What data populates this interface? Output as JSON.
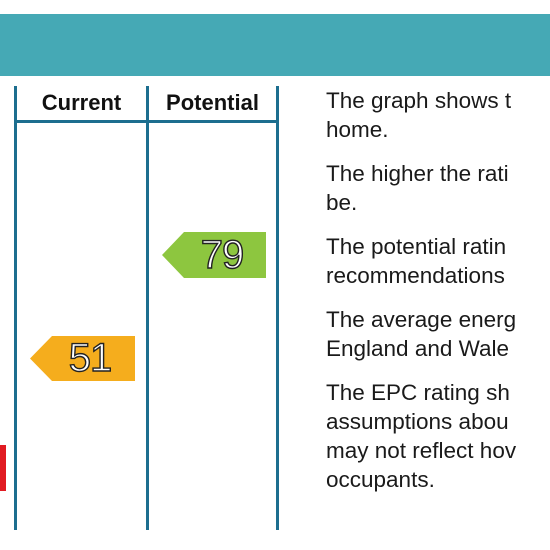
{
  "table": {
    "columns": [
      "Current",
      "Potential"
    ]
  },
  "ratings": {
    "current": {
      "value": "51",
      "color": "#f5ad1d"
    },
    "potential": {
      "value": "79",
      "color": "#8dc63f"
    }
  },
  "description": {
    "paragraphs": [
      [
        "The graph shows t",
        "home."
      ],
      [
        "The higher the rati",
        "be."
      ],
      [
        "The potential ratin",
        "recommendations"
      ],
      [
        "The average energ",
        "England and Wale"
      ],
      [
        "The EPC rating sh",
        "assumptions abou",
        "may not reflect hov",
        "occupants."
      ]
    ]
  },
  "colors": {
    "header": "#45a9b5",
    "grid": "#1c6e8f",
    "band_red": "#e11b22"
  }
}
